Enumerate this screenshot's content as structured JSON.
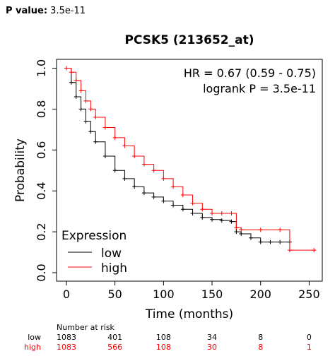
{
  "header": {
    "pvalue_label": "P value:",
    "pvalue": "3.5e-11"
  },
  "chart_data": {
    "type": "line",
    "title": "PCSK5 (213652_at)",
    "xlabel": "Time (months)",
    "ylabel": "Probability",
    "xlim": [
      0,
      260
    ],
    "ylim": [
      0,
      1.0
    ],
    "xticks": [
      0,
      50,
      100,
      150,
      200,
      250
    ],
    "yticks": [
      0.0,
      0.2,
      0.4,
      0.6,
      0.8,
      1.0
    ],
    "annotation": [
      "HR = 0.67 (0.59 - 0.75)",
      "logrank P = 3.5e-11"
    ],
    "legend": {
      "title": "Expression",
      "position": "bottom-left"
    },
    "series": [
      {
        "name": "low",
        "color": "#000000",
        "x": [
          0,
          5,
          10,
          15,
          20,
          25,
          30,
          40,
          50,
          60,
          70,
          80,
          90,
          100,
          110,
          120,
          130,
          140,
          150,
          160,
          170,
          175,
          180,
          190,
          200,
          210,
          220,
          230
        ],
        "y": [
          1.0,
          0.93,
          0.86,
          0.8,
          0.74,
          0.69,
          0.64,
          0.57,
          0.5,
          0.46,
          0.42,
          0.39,
          0.37,
          0.35,
          0.33,
          0.31,
          0.29,
          0.27,
          0.26,
          0.255,
          0.25,
          0.2,
          0.19,
          0.17,
          0.15,
          0.15,
          0.15,
          0.15
        ]
      },
      {
        "name": "high",
        "color": "#ff0000",
        "x": [
          0,
          5,
          10,
          15,
          20,
          25,
          30,
          40,
          50,
          60,
          70,
          80,
          90,
          100,
          110,
          120,
          130,
          140,
          150,
          160,
          170,
          175,
          180,
          200,
          220,
          230,
          255
        ],
        "y": [
          1.0,
          0.98,
          0.94,
          0.89,
          0.84,
          0.8,
          0.76,
          0.71,
          0.66,
          0.62,
          0.57,
          0.53,
          0.5,
          0.46,
          0.42,
          0.38,
          0.34,
          0.31,
          0.29,
          0.29,
          0.29,
          0.22,
          0.21,
          0.21,
          0.21,
          0.11,
          0.11
        ]
      }
    ],
    "risk_table": {
      "title": "Number at risk",
      "times": [
        0,
        50,
        100,
        150,
        200,
        250
      ],
      "rows": [
        {
          "label": "low",
          "color": "#000000",
          "values": [
            "1083",
            "401",
            "108",
            "34",
            "8",
            "0"
          ]
        },
        {
          "label": "high",
          "color": "#ff0000",
          "values": [
            "1083",
            "566",
            "108",
            "30",
            "8",
            "1"
          ]
        }
      ]
    }
  }
}
